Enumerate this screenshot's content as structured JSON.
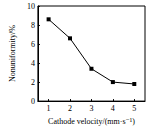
{
  "chart_data": {
    "type": "line",
    "x_label": "Cathode velocity/(mm·s⁻¹)",
    "y_label": "Nonuniformity/%",
    "x": [
      1,
      2,
      3,
      4,
      5
    ],
    "values": [
      8.6,
      6.6,
      3.4,
      2.0,
      1.8
    ],
    "color": "#000000",
    "marker": "square",
    "line_style": "solid",
    "xlim": [
      0.5,
      5.5
    ],
    "xticks": [
      1,
      2,
      3,
      4,
      5
    ],
    "ylim": [
      0,
      10
    ],
    "yticks": [
      0,
      2,
      4,
      6,
      8,
      10
    ],
    "grid": false
  }
}
